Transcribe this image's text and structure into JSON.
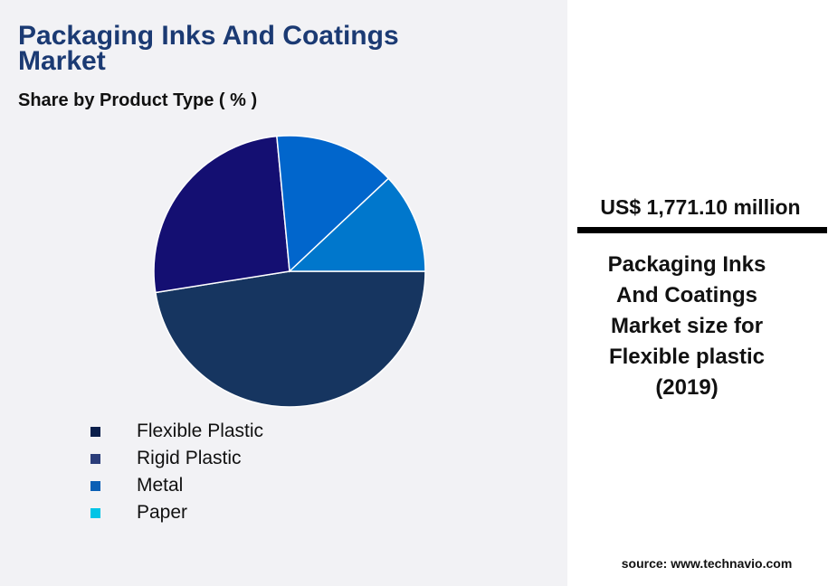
{
  "title": "Packaging Inks And Coatings Market",
  "subtitle": "Share by Product Type ( % )",
  "chart_data": {
    "type": "pie",
    "categories": [
      "Flexible Plastic",
      "Rigid Plastic",
      "Metal",
      "Paper"
    ],
    "values": [
      47.5,
      26,
      14.5,
      12
    ],
    "slice_colors": [
      "#163560",
      "#140f72",
      "#0166cc",
      "#0077cc"
    ],
    "legend_colors": [
      "#0b1f4b",
      "#2b3d7a",
      "#0a5fb5",
      "#00c4e6"
    ],
    "legend_position": "bottom"
  },
  "legend": [
    "Flexible Plastic",
    "Rigid Plastic",
    "Metal",
    "Paper"
  ],
  "side": {
    "value": "US$ 1,771.10 million",
    "description": "Packaging Inks And Coatings Market size for Flexible plastic (2019)"
  },
  "source": "source: www.technavio.com"
}
